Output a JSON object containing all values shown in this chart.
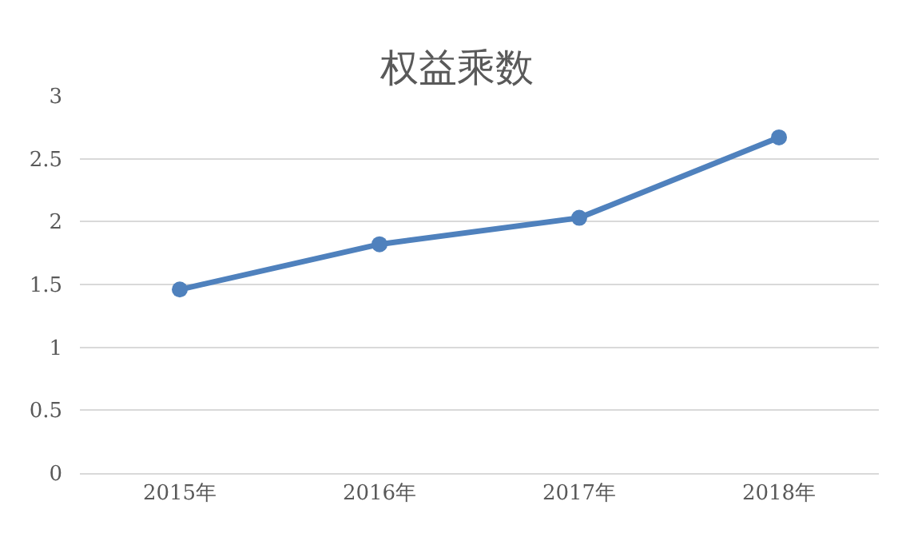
{
  "chart_data": {
    "type": "line",
    "title": "权益乘数",
    "categories": [
      "2015年",
      "2016年",
      "2017年",
      "2018年"
    ],
    "series": [
      {
        "color": "#4f81bd",
        "values": [
          1.46,
          1.82,
          2.03,
          2.67
        ]
      }
    ],
    "ylim": [
      0,
      3
    ],
    "yticks": [
      0,
      0.5,
      1,
      1.5,
      2,
      2.5,
      3
    ],
    "grid": "y",
    "marker": "circle",
    "line_style": "solid",
    "legend": false
  }
}
